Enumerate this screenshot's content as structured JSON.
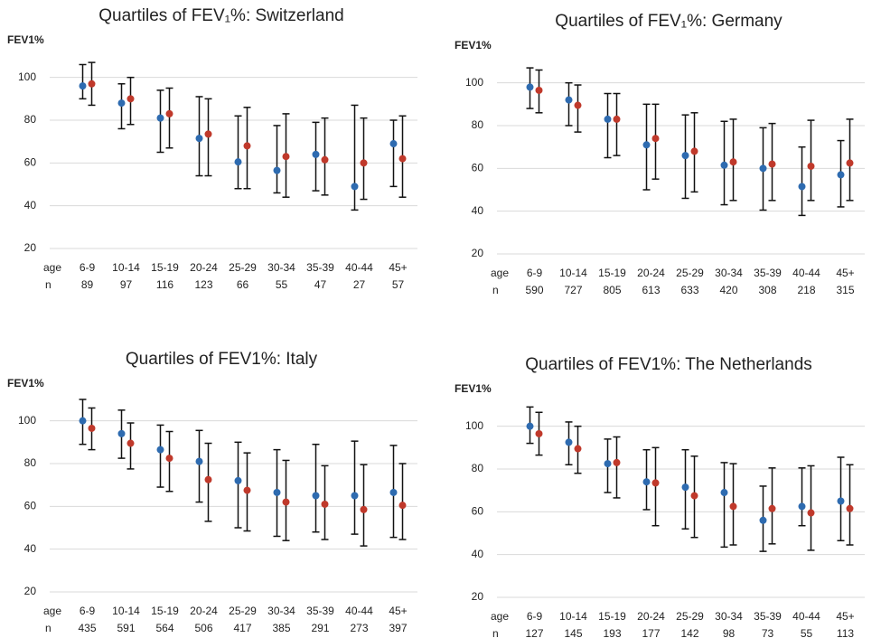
{
  "chart_data": [
    {
      "type": "errorbar",
      "title": "Quartiles of FEV₁%: Switzerland",
      "ylabel": "FEV1%",
      "x_label": "age",
      "n_label": "n",
      "categories": [
        "6-9",
        "10-14",
        "15-19",
        "20-24",
        "25-29",
        "30-34",
        "35-39",
        "40-44",
        "45+"
      ],
      "n": [
        "89",
        "97",
        "116",
        "123",
        "66",
        "55",
        "47",
        "27",
        "57"
      ],
      "ylim": [
        20,
        110
      ],
      "yticks": [
        20,
        40,
        60,
        80,
        100
      ],
      "grid": true,
      "series": [
        {
          "color": "#2e6bb0",
          "values": [
            96,
            88,
            81,
            71.5,
            60.5,
            56.5,
            64,
            49,
            69
          ],
          "q1": [
            90,
            76,
            65,
            54,
            48,
            46,
            47,
            38,
            49
          ],
          "q3": [
            106,
            97,
            94,
            91,
            82,
            77.5,
            79,
            87,
            80
          ]
        },
        {
          "color": "#c0392b",
          "values": [
            97,
            90,
            83,
            73.5,
            68,
            63,
            61.5,
            60,
            62
          ],
          "q1": [
            87,
            78,
            67,
            54,
            48,
            44,
            45,
            43,
            44
          ],
          "q3": [
            107,
            100,
            95,
            90,
            86,
            83,
            81,
            81,
            82
          ]
        }
      ]
    },
    {
      "type": "errorbar",
      "title": "Quartiles of FEV₁%: Germany",
      "ylabel": "FEV1%",
      "x_label": "age",
      "n_label": "n",
      "categories": [
        "6-9",
        "10-14",
        "15-19",
        "20-24",
        "25-29",
        "30-34",
        "35-39",
        "40-44",
        "45+"
      ],
      "n": [
        "590",
        "727",
        "805",
        "613",
        "633",
        "420",
        "308",
        "218",
        "315"
      ],
      "ylim": [
        20,
        110
      ],
      "yticks": [
        20,
        40,
        60,
        80,
        100
      ],
      "grid": true,
      "series": [
        {
          "color": "#2e6bb0",
          "values": [
            98,
            92,
            83,
            71,
            66,
            61.5,
            60,
            51.5,
            57
          ],
          "q1": [
            88,
            80,
            65,
            50,
            46,
            43,
            40.5,
            38,
            42
          ],
          "q3": [
            107,
            100,
            95,
            90,
            85,
            82,
            79,
            70,
            73
          ]
        },
        {
          "color": "#c0392b",
          "values": [
            96.5,
            89.5,
            83,
            74,
            68,
            63,
            62,
            61,
            62.5
          ],
          "q1": [
            86,
            77,
            66,
            55,
            49,
            45,
            45,
            45,
            45
          ],
          "q3": [
            106,
            99,
            95,
            90,
            86,
            83,
            81,
            82.5,
            83
          ]
        }
      ]
    },
    {
      "type": "errorbar",
      "title": "Quartiles of FEV1%: Italy",
      "ylabel": "FEV1%",
      "x_label": "age",
      "n_label": "n",
      "categories": [
        "6-9",
        "10-14",
        "15-19",
        "20-24",
        "25-29",
        "30-34",
        "35-39",
        "40-44",
        "45+"
      ],
      "n": [
        "435",
        "591",
        "564",
        "506",
        "417",
        "385",
        "291",
        "273",
        "397"
      ],
      "ylim": [
        20,
        110
      ],
      "yticks": [
        20,
        40,
        60,
        80,
        100
      ],
      "grid": true,
      "series": [
        {
          "color": "#2e6bb0",
          "values": [
            100,
            94,
            86.5,
            81,
            72,
            66.5,
            65,
            65,
            66.5
          ],
          "q1": [
            89,
            82.5,
            69,
            62,
            50,
            46,
            48,
            47,
            45.5
          ],
          "q3": [
            110,
            105,
            98,
            95.5,
            90,
            86.5,
            89,
            90.5,
            88.5
          ]
        },
        {
          "color": "#c0392b",
          "values": [
            96.5,
            89.5,
            82.5,
            72.5,
            67.5,
            62,
            61,
            58.5,
            60.5
          ],
          "q1": [
            86.5,
            77.5,
            67,
            53,
            48.5,
            44,
            44.5,
            41.5,
            44.5
          ],
          "q3": [
            106,
            99,
            95,
            89.5,
            85,
            81.5,
            79,
            79.5,
            80
          ]
        }
      ]
    },
    {
      "type": "errorbar",
      "title": "Quartiles of FEV1%: The Netherlands",
      "ylabel": "FEV1%",
      "x_label": "age",
      "n_label": "n",
      "categories": [
        "6-9",
        "10-14",
        "15-19",
        "20-24",
        "25-29",
        "30-34",
        "35-39",
        "40-44",
        "45+"
      ],
      "n": [
        "127",
        "145",
        "193",
        "177",
        "142",
        "98",
        "73",
        "55",
        "113"
      ],
      "ylim": [
        20,
        110
      ],
      "yticks": [
        20,
        40,
        60,
        80,
        100
      ],
      "grid": true,
      "series": [
        {
          "color": "#2e6bb0",
          "values": [
            100,
            92.5,
            82.5,
            74,
            71.5,
            69,
            56,
            62.5,
            65
          ],
          "q1": [
            92,
            82,
            69,
            61,
            52,
            43.5,
            41.5,
            53.5,
            46.5
          ],
          "q3": [
            109,
            102,
            94,
            89,
            89,
            83,
            72,
            80.5,
            85.5
          ]
        },
        {
          "color": "#c0392b",
          "values": [
            96.5,
            89.5,
            83,
            73.5,
            67.5,
            62.5,
            61.5,
            59.5,
            61.5
          ],
          "q1": [
            86.5,
            78,
            66.5,
            53.5,
            48,
            44.5,
            45,
            42,
            44.5
          ],
          "q3": [
            106.5,
            100,
            95,
            90,
            86,
            82.5,
            80.5,
            81.5,
            82
          ]
        }
      ]
    }
  ]
}
